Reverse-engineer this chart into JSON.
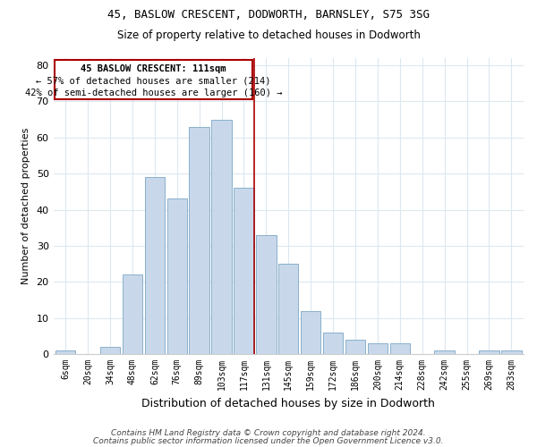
{
  "title1": "45, BASLOW CRESCENT, DODWORTH, BARNSLEY, S75 3SG",
  "title2": "Size of property relative to detached houses in Dodworth",
  "xlabel": "Distribution of detached houses by size in Dodworth",
  "ylabel": "Number of detached properties",
  "bar_labels": [
    "6sqm",
    "20sqm",
    "34sqm",
    "48sqm",
    "62sqm",
    "76sqm",
    "89sqm",
    "103sqm",
    "117sqm",
    "131sqm",
    "145sqm",
    "159sqm",
    "172sqm",
    "186sqm",
    "200sqm",
    "214sqm",
    "228sqm",
    "242sqm",
    "255sqm",
    "269sqm",
    "283sqm"
  ],
  "bar_values": [
    1,
    0,
    2,
    22,
    49,
    43,
    63,
    65,
    46,
    33,
    25,
    12,
    6,
    4,
    3,
    3,
    0,
    1,
    0,
    1,
    1
  ],
  "bar_color": "#c8d8ea",
  "bar_edge_color": "#8ab0cc",
  "highlight_line_color": "#aa0000",
  "annotation_title": "45 BASLOW CRESCENT: 111sqm",
  "annotation_line1": "← 57% of detached houses are smaller (214)",
  "annotation_line2": "42% of semi-detached houses are larger (160) →",
  "annotation_box_facecolor": "#ffffff",
  "annotation_box_edgecolor": "#aa0000",
  "ylim": [
    0,
    82
  ],
  "yticks": [
    0,
    10,
    20,
    30,
    40,
    50,
    60,
    70,
    80
  ],
  "footer1": "Contains HM Land Registry data © Crown copyright and database right 2024.",
  "footer2": "Contains public sector information licensed under the Open Government Licence v3.0.",
  "background_color": "#ffffff",
  "plot_bg_color": "#ffffff",
  "grid_color": "#dce8f0"
}
